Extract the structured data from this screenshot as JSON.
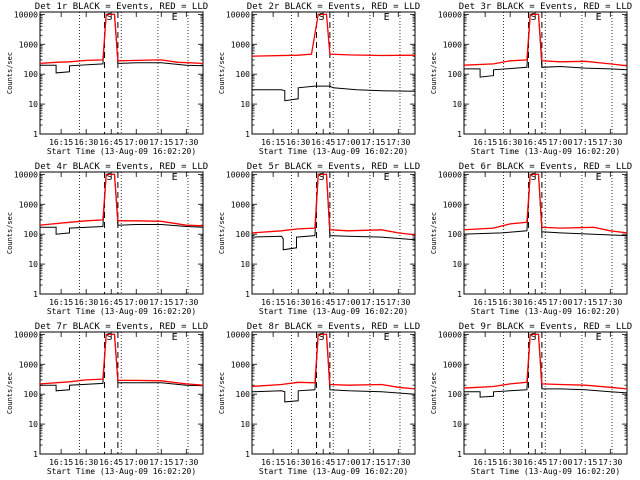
{
  "figure": {
    "background": "#ffffff"
  },
  "styles": {
    "events_color": "#000000",
    "lld_color": "#ff0000",
    "dash_color": "#000000",
    "dot_color": "#000000"
  },
  "common": {
    "xlabel": "Start Time (13-Aug-09 16:02:20)",
    "ylabel": "Counts/sec",
    "x_tick_labels": [
      "16:15",
      "16:30",
      "16:45",
      "17:00",
      "17:15",
      "17:30"
    ],
    "y_tick_labels": [
      "1",
      "10",
      "100",
      "1000",
      "10000"
    ],
    "dashed_times": [
      "16:41",
      "16:49"
    ],
    "dotted_times": [
      "16:26",
      "16:51",
      "17:13",
      "17:31"
    ],
    "xlim": [
      "16:02:20",
      "17:40"
    ],
    "ylim": [
      1,
      12000
    ],
    "yscale": "log"
  },
  "chart_data": [
    {
      "type": "line",
      "title": "Det 1r BLACK = Events, RED = LLD",
      "markers": [
        {
          "label": "S",
          "time": "16:44"
        },
        {
          "label": "E",
          "time": "17:23"
        }
      ],
      "series": [
        {
          "name": "Events",
          "x": [
            "16:02",
            "16:12",
            "16:12",
            "16:20",
            "16:20",
            "16:40",
            "16:42",
            "16:47",
            "16:49",
            "17:00",
            "17:15",
            "17:30",
            "17:40"
          ],
          "values": [
            200,
            200,
            110,
            120,
            190,
            220,
            10000,
            10000,
            230,
            240,
            240,
            200,
            190
          ]
        },
        {
          "name": "LLD",
          "x": [
            "16:02",
            "16:12",
            "16:20",
            "16:30",
            "16:40",
            "16:42",
            "16:47",
            "16:49",
            "17:00",
            "17:15",
            "17:25",
            "17:40"
          ],
          "values": [
            230,
            250,
            260,
            290,
            300,
            10000,
            10000,
            280,
            290,
            300,
            250,
            230
          ]
        }
      ]
    },
    {
      "type": "line",
      "title": "Det 2r BLACK = Events, RED = LLD",
      "markers": [
        {
          "label": "S",
          "time": "16:44"
        },
        {
          "label": "E",
          "time": "17:23"
        }
      ],
      "series": [
        {
          "name": "Events",
          "x": [
            "16:02",
            "16:20",
            "16:22",
            "16:22",
            "16:30",
            "16:30",
            "16:40",
            "16:49",
            "16:51",
            "17:05",
            "17:20",
            "17:40"
          ],
          "values": [
            30,
            30,
            28,
            13,
            15,
            35,
            40,
            40,
            35,
            30,
            28,
            27
          ]
        },
        {
          "name": "LLD",
          "x": [
            "16:02",
            "16:30",
            "16:38",
            "16:42",
            "16:47",
            "16:49",
            "17:00",
            "17:20",
            "17:40"
          ],
          "values": [
            400,
            430,
            470,
            10000,
            10000,
            470,
            440,
            420,
            430
          ]
        }
      ]
    },
    {
      "type": "line",
      "title": "Det 3r BLACK = Events, RED = LLD",
      "markers": [
        {
          "label": "S",
          "time": "16:44"
        },
        {
          "label": "E",
          "time": "17:23"
        }
      ],
      "series": [
        {
          "name": "Events",
          "x": [
            "16:02",
            "16:12",
            "16:12",
            "16:20",
            "16:20",
            "16:40",
            "16:42",
            "16:47",
            "16:49",
            "17:00",
            "17:15",
            "17:30",
            "17:40"
          ],
          "values": [
            150,
            150,
            80,
            90,
            140,
            170,
            10000,
            10000,
            170,
            180,
            160,
            150,
            140
          ]
        },
        {
          "name": "LLD",
          "x": [
            "16:02",
            "16:20",
            "16:30",
            "16:40",
            "16:42",
            "16:47",
            "16:49",
            "17:00",
            "17:15",
            "17:30",
            "17:40"
          ],
          "values": [
            200,
            220,
            280,
            300,
            10000,
            10000,
            280,
            260,
            270,
            220,
            190
          ]
        }
      ]
    },
    {
      "type": "line",
      "title": "Det 4r BLACK = Events, RED = LLD",
      "markers": [
        {
          "label": "S",
          "time": "16:44"
        },
        {
          "label": "E",
          "time": "17:23"
        }
      ],
      "series": [
        {
          "name": "Events",
          "x": [
            "16:02",
            "16:12",
            "16:12",
            "16:20",
            "16:20",
            "16:40",
            "16:42",
            "16:47",
            "16:49",
            "17:00",
            "17:15",
            "17:30",
            "17:40"
          ],
          "values": [
            170,
            170,
            100,
            110,
            160,
            180,
            10000,
            10000,
            200,
            210,
            210,
            180,
            170
          ]
        },
        {
          "name": "LLD",
          "x": [
            "16:02",
            "16:20",
            "16:30",
            "16:40",
            "16:42",
            "16:47",
            "16:49",
            "17:00",
            "17:15",
            "17:30",
            "17:40"
          ],
          "values": [
            200,
            250,
            280,
            300,
            10000,
            10000,
            280,
            280,
            270,
            200,
            190
          ]
        }
      ]
    },
    {
      "type": "line",
      "title": "Det 5r BLACK = Events, RED = LLD",
      "markers": [
        {
          "label": "S",
          "time": "16:44"
        },
        {
          "label": "E",
          "time": "17:23"
        }
      ],
      "series": [
        {
          "name": "Events",
          "x": [
            "16:02",
            "16:20",
            "16:21",
            "16:21",
            "16:29",
            "16:29",
            "16:40",
            "16:42",
            "16:47",
            "16:49",
            "17:00",
            "17:20",
            "17:40"
          ],
          "values": [
            80,
            85,
            70,
            30,
            35,
            80,
            90,
            10000,
            10000,
            90,
            85,
            80,
            65
          ]
        },
        {
          "name": "LLD",
          "x": [
            "16:02",
            "16:20",
            "16:30",
            "16:40",
            "16:42",
            "16:47",
            "16:49",
            "17:00",
            "17:20",
            "17:30",
            "17:40"
          ],
          "values": [
            110,
            130,
            150,
            160,
            10000,
            10000,
            140,
            130,
            140,
            110,
            95
          ]
        }
      ]
    },
    {
      "type": "line",
      "title": "Det 6r BLACK = Events, RED = LLD",
      "markers": [
        {
          "label": "S",
          "time": "16:44"
        },
        {
          "label": "E",
          "time": "17:23"
        }
      ],
      "series": [
        {
          "name": "Events",
          "x": [
            "16:02",
            "16:25",
            "16:40",
            "16:42",
            "16:47",
            "16:49",
            "17:00",
            "17:20",
            "17:40"
          ],
          "values": [
            100,
            110,
            130,
            10000,
            10000,
            120,
            110,
            100,
            90
          ]
        },
        {
          "name": "LLD",
          "x": [
            "16:02",
            "16:20",
            "16:30",
            "16:40",
            "16:42",
            "16:47",
            "16:49",
            "17:00",
            "17:20",
            "17:30",
            "17:40"
          ],
          "values": [
            140,
            160,
            220,
            250,
            10000,
            10000,
            170,
            160,
            170,
            130,
            110
          ]
        }
      ]
    },
    {
      "type": "line",
      "title": "Det 7r BLACK = Events, RED = LLD",
      "markers": [
        {
          "label": "S",
          "time": "16:44"
        },
        {
          "label": "E",
          "time": "17:23"
        }
      ],
      "series": [
        {
          "name": "Events",
          "x": [
            "16:02",
            "16:12",
            "16:12",
            "16:20",
            "16:20",
            "16:40",
            "16:42",
            "16:47",
            "16:49",
            "17:00",
            "17:15",
            "17:30",
            "17:40"
          ],
          "values": [
            200,
            200,
            130,
            140,
            200,
            230,
            10000,
            10000,
            240,
            240,
            240,
            200,
            190
          ]
        },
        {
          "name": "LLD",
          "x": [
            "16:02",
            "16:20",
            "16:30",
            "16:40",
            "16:42",
            "16:47",
            "16:49",
            "17:00",
            "17:15",
            "17:30",
            "17:40"
          ],
          "values": [
            220,
            260,
            300,
            320,
            10000,
            10000,
            290,
            290,
            280,
            220,
            200
          ]
        }
      ]
    },
    {
      "type": "line",
      "title": "Det 8r BLACK = Events, RED = LLD",
      "markers": [
        {
          "label": "S",
          "time": "16:44"
        },
        {
          "label": "E",
          "time": "17:23"
        }
      ],
      "series": [
        {
          "name": "Events",
          "x": [
            "16:02",
            "16:20",
            "16:22",
            "16:22",
            "16:30",
            "16:30",
            "16:40",
            "16:42",
            "16:47",
            "16:49",
            "17:00",
            "17:20",
            "17:40"
          ],
          "values": [
            120,
            130,
            120,
            55,
            60,
            130,
            140,
            10000,
            10000,
            140,
            130,
            120,
            100
          ]
        },
        {
          "name": "LLD",
          "x": [
            "16:02",
            "16:20",
            "16:30",
            "16:40",
            "16:42",
            "16:47",
            "16:49",
            "17:00",
            "17:20",
            "17:30",
            "17:40"
          ],
          "values": [
            180,
            210,
            250,
            240,
            10000,
            10000,
            210,
            200,
            210,
            170,
            150
          ]
        }
      ]
    },
    {
      "type": "line",
      "title": "Det 9r BLACK = Events, RED = LLD",
      "markers": [
        {
          "label": "S",
          "time": "16:44"
        },
        {
          "label": "E",
          "time": "17:23"
        }
      ],
      "series": [
        {
          "name": "Events",
          "x": [
            "16:02",
            "16:12",
            "16:12",
            "16:20",
            "16:20",
            "16:40",
            "16:42",
            "16:47",
            "16:49",
            "17:00",
            "17:15",
            "17:30",
            "17:40"
          ],
          "values": [
            120,
            120,
            80,
            85,
            120,
            140,
            10000,
            10000,
            150,
            150,
            140,
            120,
            110
          ]
        },
        {
          "name": "LLD",
          "x": [
            "16:02",
            "16:20",
            "16:30",
            "16:40",
            "16:42",
            "16:47",
            "16:49",
            "17:00",
            "17:15",
            "17:30",
            "17:40"
          ],
          "values": [
            160,
            180,
            220,
            250,
            10000,
            10000,
            220,
            210,
            200,
            170,
            150
          ]
        }
      ]
    }
  ]
}
